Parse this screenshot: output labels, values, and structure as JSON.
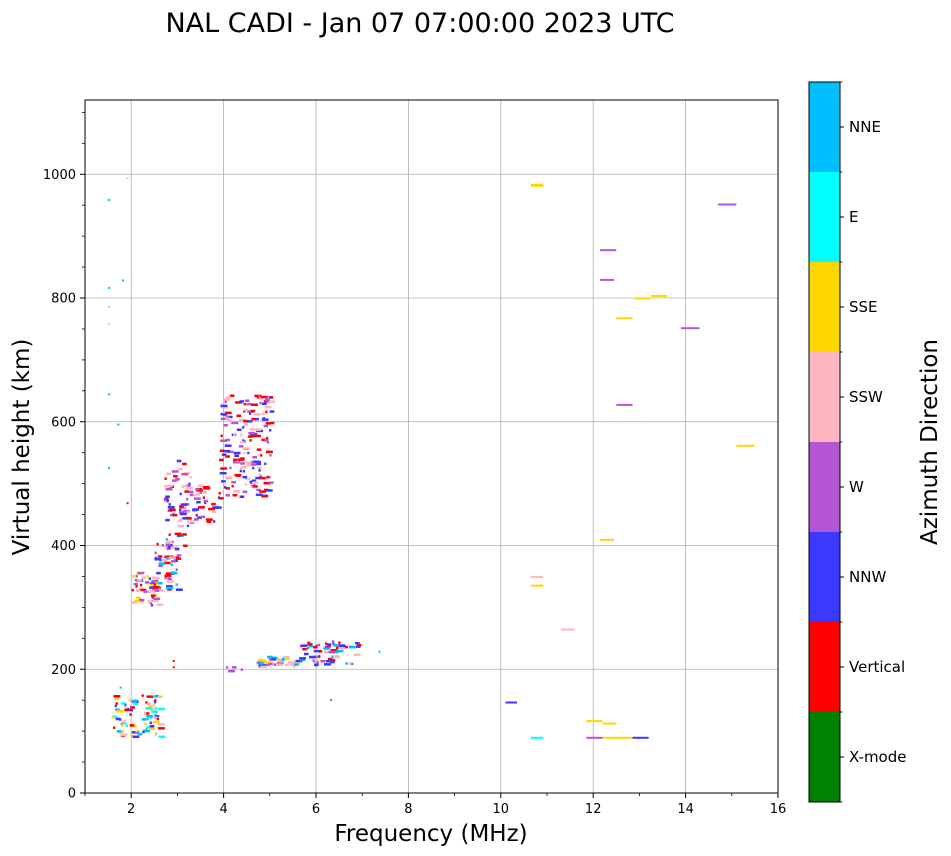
{
  "chart_data": {
    "type": "scatter",
    "title": "NAL CADI - Jan 07 07:00:00 2023 UTC",
    "xlabel": "Frequency (MHz)",
    "ylabel": "Virtual height (km)",
    "xlim": [
      1,
      16
    ],
    "ylim": [
      0,
      1120
    ],
    "xticks": [
      2,
      4,
      6,
      8,
      10,
      12,
      14,
      16
    ],
    "xtick_labels": [
      "2",
      "4",
      "6",
      "8",
      "10",
      "12",
      "14",
      "16"
    ],
    "yticks": [
      0,
      200,
      400,
      600,
      800,
      1000
    ],
    "ytick_labels": [
      "0",
      "200",
      "400",
      "600",
      "800",
      "1000"
    ],
    "grid": true,
    "colorbar": {
      "title": "Azimuth Direction",
      "categories": [
        "X-mode",
        "Vertical",
        "NNW",
        "W",
        "SSW",
        "SSE",
        "E",
        "NNE"
      ],
      "colors": [
        "#008000",
        "#ff0000",
        "#3a3aff",
        "#b455d4",
        "#ffb6c1",
        "#ffd700",
        "#00ffff",
        "#00bfff"
      ]
    },
    "echo_clusters": [
      {
        "x": [
          1.55,
          2.6
        ],
        "y": [
          90,
          160
        ],
        "mix": [
          "Vertical",
          "NNW",
          "SSE",
          "E",
          "NNE",
          "SSW"
        ],
        "n": 90
      },
      {
        "x": [
          2.0,
          2.6
        ],
        "y": [
          305,
          360
        ],
        "mix": [
          "Vertical",
          "SSE",
          "SSW",
          "NNW",
          "W"
        ],
        "n": 55
      },
      {
        "x": [
          2.5,
          3.0
        ],
        "y": [
          330,
          420
        ],
        "mix": [
          "Vertical",
          "NNW",
          "SSW",
          "W",
          "NNE"
        ],
        "n": 55
      },
      {
        "x": [
          2.7,
          3.3
        ],
        "y": [
          400,
          540
        ],
        "mix": [
          "Vertical",
          "SSW",
          "NNW",
          "W"
        ],
        "n": 55
      },
      {
        "x": [
          3.0,
          3.9
        ],
        "y": [
          440,
          500
        ],
        "mix": [
          "SSW",
          "NNW",
          "W",
          "Vertical"
        ],
        "n": 45
      },
      {
        "x": [
          3.9,
          5.0
        ],
        "y": [
          480,
          645
        ],
        "mix": [
          "W",
          "NNW",
          "SSW",
          "Vertical"
        ],
        "n": 170
      },
      {
        "x": [
          4.0,
          4.4
        ],
        "y": [
          198,
          206
        ],
        "mix": [
          "W"
        ],
        "n": 4
      },
      {
        "x": [
          4.7,
          5.7
        ],
        "y": [
          205,
          222
        ],
        "mix": [
          "W",
          "NNW",
          "SSW",
          "SSE",
          "NNE"
        ],
        "n": 40
      },
      {
        "x": [
          5.6,
          6.9
        ],
        "y": [
          208,
          248
        ],
        "mix": [
          "SSW",
          "W",
          "NNW",
          "Vertical",
          "NNE"
        ],
        "n": 65
      }
    ],
    "echo_points": [
      {
        "f": 2.9,
        "h": 205,
        "dir": "Vertical"
      },
      {
        "f": 2.9,
        "h": 215,
        "dir": "Vertical"
      },
      {
        "f": 7.35,
        "h": 230,
        "dir": "NNE"
      },
      {
        "f": 6.3,
        "h": 152,
        "dir": "W"
      },
      {
        "f": 1.9,
        "h": 470,
        "dir": "Vertical"
      },
      {
        "f": 1.5,
        "h": 960,
        "dir": "NNE"
      },
      {
        "f": 1.9,
        "h": 995,
        "dir": "SSW"
      },
      {
        "f": 1.8,
        "h": 830,
        "dir": "NNE"
      },
      {
        "f": 1.5,
        "h": 818,
        "dir": "NNE"
      },
      {
        "f": 1.5,
        "h": 787,
        "dir": "SSW"
      },
      {
        "f": 1.5,
        "h": 760,
        "dir": "SSW"
      },
      {
        "f": 1.5,
        "h": 646,
        "dir": "NNE"
      },
      {
        "f": 1.7,
        "h": 597,
        "dir": "NNE"
      },
      {
        "f": 1.5,
        "h": 527,
        "dir": "NNE"
      },
      {
        "f": 1.75,
        "h": 172,
        "dir": "NNE"
      }
    ],
    "echo_segments": [
      {
        "f0": 10.65,
        "f1": 10.92,
        "h": 983,
        "dir": "SSE",
        "thick": 2
      },
      {
        "f0": 14.7,
        "f1": 15.1,
        "h": 952,
        "dir": "W",
        "thick": 1
      },
      {
        "f0": 12.15,
        "f1": 12.5,
        "h": 878,
        "dir": "W",
        "thick": 1
      },
      {
        "f0": 12.15,
        "f1": 12.45,
        "h": 830,
        "dir": "W",
        "thick": 1
      },
      {
        "f0": 12.9,
        "f1": 13.25,
        "h": 800,
        "dir": "SSE",
        "thick": 1
      },
      {
        "f0": 13.25,
        "f1": 13.6,
        "h": 804,
        "dir": "SSE",
        "thick": 1
      },
      {
        "f0": 12.5,
        "f1": 12.85,
        "h": 768,
        "dir": "SSE",
        "thick": 1
      },
      {
        "f0": 13.9,
        "f1": 14.3,
        "h": 752,
        "dir": "W",
        "thick": 1
      },
      {
        "f0": 12.5,
        "f1": 12.85,
        "h": 628,
        "dir": "W",
        "thick": 1
      },
      {
        "f0": 15.1,
        "f1": 15.5,
        "h": 562,
        "dir": "SSE",
        "thick": 1
      },
      {
        "f0": 12.15,
        "f1": 12.45,
        "h": 410,
        "dir": "SSE",
        "thick": 1
      },
      {
        "f0": 10.65,
        "f1": 10.92,
        "h": 350,
        "dir": "SSW",
        "thick": 1
      },
      {
        "f0": 10.65,
        "f1": 10.92,
        "h": 336,
        "dir": "SSE",
        "thick": 1
      },
      {
        "f0": 11.3,
        "f1": 11.6,
        "h": 265,
        "dir": "SSW",
        "thick": 1
      },
      {
        "f0": 10.1,
        "f1": 10.35,
        "h": 147,
        "dir": "NNW",
        "thick": 1
      },
      {
        "f0": 11.85,
        "f1": 12.2,
        "h": 117,
        "dir": "SSE",
        "thick": 1
      },
      {
        "f0": 12.2,
        "f1": 12.5,
        "h": 113,
        "dir": "SSE",
        "thick": 1
      },
      {
        "f0": 10.65,
        "f1": 10.92,
        "h": 90,
        "dir": "E",
        "thick": 1
      },
      {
        "f0": 11.85,
        "f1": 12.2,
        "h": 90,
        "dir": "W",
        "thick": 1
      },
      {
        "f0": 12.2,
        "f1": 12.85,
        "h": 90,
        "dir": "SSE",
        "thick": 1
      },
      {
        "f0": 12.85,
        "f1": 13.2,
        "h": 90,
        "dir": "NNW",
        "thick": 1
      }
    ]
  }
}
